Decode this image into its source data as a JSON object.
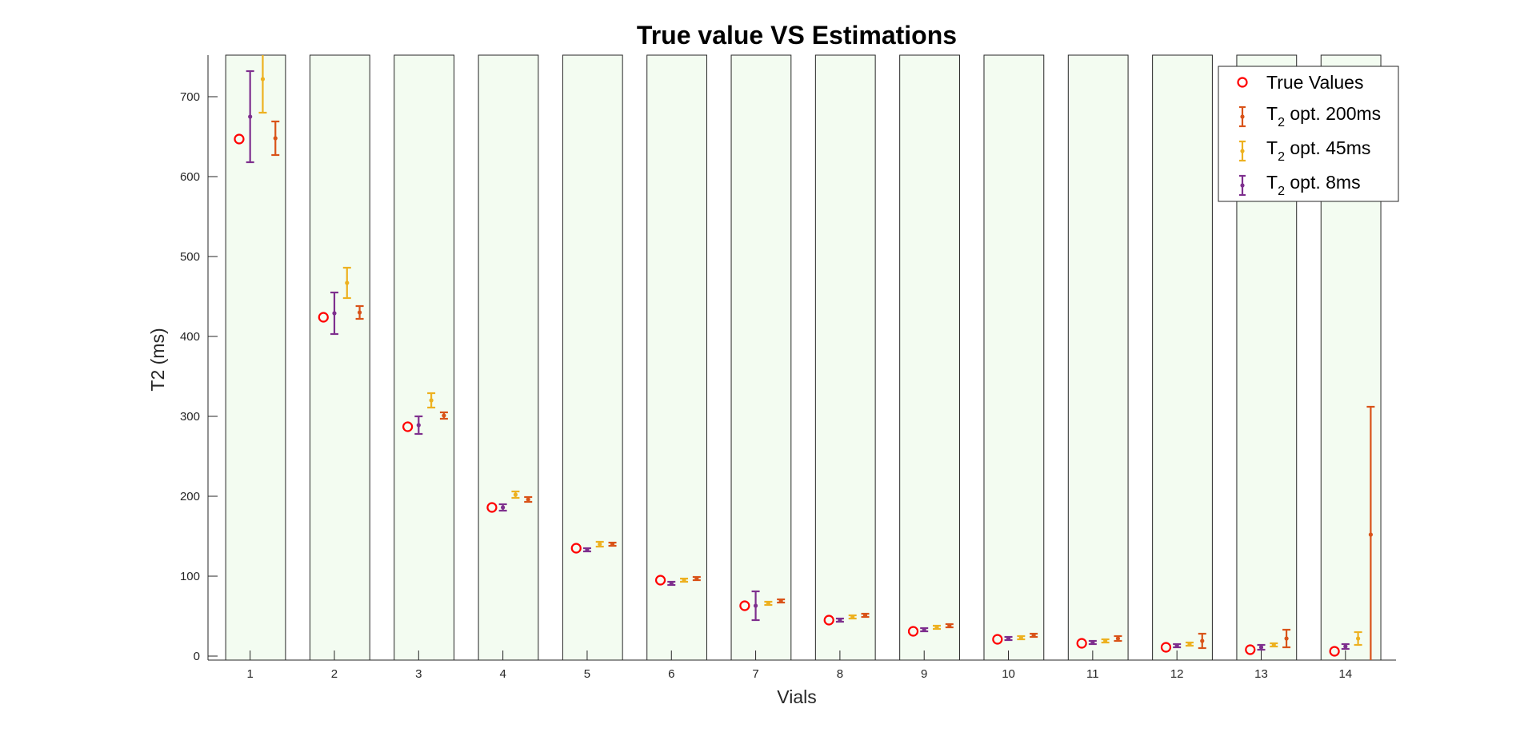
{
  "chart_data": {
    "type": "scatter",
    "title": "True value VS Estimations",
    "xlabel": "Vials",
    "ylabel": "T2 (ms)",
    "ylim": [
      -5,
      752
    ],
    "xlim": [
      0.5,
      14.6
    ],
    "grid": false,
    "legend_position": "top-right",
    "x_ticks": [
      1,
      2,
      3,
      4,
      5,
      6,
      7,
      8,
      9,
      10,
      11,
      12,
      13,
      14
    ],
    "y_ticks": [
      0,
      100,
      200,
      300,
      400,
      500,
      600,
      700
    ],
    "background_bands": {
      "color": "#f3fcf1",
      "stroke": "#262626",
      "vials": [
        1,
        2,
        3,
        4,
        5,
        6,
        7,
        8,
        9,
        10,
        11,
        12,
        13,
        14
      ]
    },
    "true_values": {
      "name": "True Values",
      "color": "#ff0000",
      "x": [
        1,
        2,
        3,
        4,
        5,
        6,
        7,
        8,
        9,
        10,
        11,
        12,
        13,
        14
      ],
      "y": [
        647,
        424,
        287,
        186,
        135,
        95,
        63,
        45,
        31,
        21,
        16,
        11,
        8,
        6
      ]
    },
    "series": [
      {
        "name": "T2 opt. 8ms",
        "legend_main": "T",
        "legend_sub": "2",
        "legend_rest": " opt. 8ms",
        "color": "#7e2f8e",
        "x_offset": 0,
        "y": [
          675,
          429,
          289,
          186,
          133,
          91,
          63,
          45,
          33,
          22,
          17,
          13,
          11,
          12
        ],
        "err": [
          57,
          26,
          11,
          4,
          2,
          2,
          18,
          2,
          2,
          2,
          2,
          2,
          3,
          3
        ]
      },
      {
        "name": "T2 opt. 45ms",
        "legend_main": "T",
        "legend_sub": "2",
        "legend_rest": " opt. 45ms",
        "color": "#edb120",
        "x_offset": 0.15,
        "y": [
          722,
          467,
          320,
          202,
          140,
          95,
          66,
          49,
          36,
          23,
          19,
          15,
          14,
          22
        ],
        "err": [
          42,
          19,
          9,
          4,
          3,
          2,
          2,
          2,
          2,
          2,
          2,
          2,
          2,
          8
        ]
      },
      {
        "name": "T2 opt. 200ms",
        "legend_main": "T",
        "legend_sub": "2",
        "legend_rest": " opt. 200ms",
        "color": "#d95319",
        "x_offset": 0.3,
        "y": [
          648,
          430,
          301,
          196,
          140,
          97,
          69,
          51,
          38,
          26,
          22,
          19,
          22,
          152
        ],
        "err": [
          21,
          8,
          4,
          3,
          2,
          2,
          2,
          2,
          2,
          2,
          3,
          9,
          11,
          160
        ]
      }
    ],
    "legend_order": [
      "true",
      "T2 opt. 200ms",
      "T2 opt. 45ms",
      "T2 opt. 8ms"
    ]
  }
}
